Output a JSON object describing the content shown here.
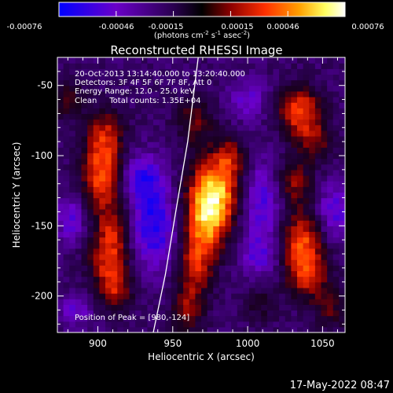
{
  "chart_data": {
    "type": "heatmap",
    "title": "Reconstructed RHESSI Image",
    "xlabel": "Heliocentric X (arcsec)",
    "ylabel": "Heliocentric Y (arcsec)",
    "xlim": [
      873,
      1065
    ],
    "ylim": [
      -226,
      -30
    ],
    "x_ticks": [
      900,
      950,
      1000,
      1050
    ],
    "y_ticks": [
      -50,
      -100,
      -150,
      -200
    ],
    "colorbar": {
      "ticks": [
        "-0.00076",
        "-0.00046",
        "-0.00015",
        "0.00015",
        "0.00046",
        "0.00076"
      ],
      "label_pre": "(photons cm",
      "label_exp1": "-2",
      "label_mid": " s",
      "label_exp2": "-1",
      "label_mid2": " asec",
      "label_exp3": "-2",
      "label_post": ")",
      "range": [
        -0.00076,
        0.00076
      ],
      "colormap": [
        "#0000ff",
        "#6a00c8",
        "#3a0060",
        "#000000",
        "#8c0000",
        "#ff3000",
        "#ffa000",
        "#ffff60",
        "#ffffff"
      ]
    },
    "annotations": [
      "20-Oct-2013 13:14:40.000 to 13:20:40.000",
      "Detectors: 3F 4F 5F 6F 7F 8F, Att 0",
      "Energy Range: 12.0 - 25.0 keV",
      "Clean     Total counts: 1.35E+04"
    ],
    "peak_label": "Position of Peak = [980,-124]",
    "peak": [
      980,
      -124
    ],
    "limb_curve": [
      [
        967,
        -30
      ],
      [
        960,
        -90
      ],
      [
        952,
        -140
      ],
      [
        945,
        -185
      ],
      [
        937,
        -226
      ]
    ],
    "sources": [
      {
        "x": 905,
        "y": -85,
        "sx": 9,
        "sy": 14,
        "amp": 0.55
      },
      {
        "x": 902,
        "y": -115,
        "sx": 9,
        "sy": 16,
        "amp": 0.7
      },
      {
        "x": 910,
        "y": -150,
        "sx": 8,
        "sy": 14,
        "amp": 0.45
      },
      {
        "x": 907,
        "y": -175,
        "sx": 10,
        "sy": 14,
        "amp": 0.6
      },
      {
        "x": 912,
        "y": -198,
        "sx": 8,
        "sy": 10,
        "amp": 0.45
      },
      {
        "x": 880,
        "y": -60,
        "sx": 8,
        "sy": 10,
        "amp": 0.35
      },
      {
        "x": 978,
        "y": -125,
        "sx": 12,
        "sy": 16,
        "amp": 1.0
      },
      {
        "x": 972,
        "y": -150,
        "sx": 10,
        "sy": 16,
        "amp": 0.8
      },
      {
        "x": 965,
        "y": -180,
        "sx": 8,
        "sy": 14,
        "amp": 0.55
      },
      {
        "x": 960,
        "y": -210,
        "sx": 8,
        "sy": 12,
        "amp": 0.45
      },
      {
        "x": 965,
        "y": -75,
        "sx": 9,
        "sy": 12,
        "amp": 0.4
      },
      {
        "x": 988,
        "y": -100,
        "sx": 8,
        "sy": 10,
        "amp": 0.45
      },
      {
        "x": 1035,
        "y": -68,
        "sx": 10,
        "sy": 12,
        "amp": 0.75
      },
      {
        "x": 1045,
        "y": -90,
        "sx": 9,
        "sy": 10,
        "amp": 0.4
      },
      {
        "x": 1030,
        "y": -120,
        "sx": 9,
        "sy": 12,
        "amp": 0.5
      },
      {
        "x": 1036,
        "y": -160,
        "sx": 10,
        "sy": 14,
        "amp": 0.7
      },
      {
        "x": 1040,
        "y": -185,
        "sx": 10,
        "sy": 12,
        "amp": 0.6
      },
      {
        "x": 1055,
        "y": -210,
        "sx": 8,
        "sy": 10,
        "amp": 0.35
      },
      {
        "x": 1008,
        "y": -205,
        "sx": 8,
        "sy": 10,
        "amp": 0.25
      }
    ],
    "negatives": [
      {
        "x": 937,
        "y": -150,
        "sx": 11,
        "sy": 22,
        "amp": -0.6
      },
      {
        "x": 930,
        "y": -115,
        "sx": 9,
        "sy": 12,
        "amp": -0.45
      },
      {
        "x": 1010,
        "y": -130,
        "sx": 10,
        "sy": 18,
        "amp": -0.5
      },
      {
        "x": 1008,
        "y": -170,
        "sx": 9,
        "sy": 12,
        "amp": -0.4
      },
      {
        "x": 1058,
        "y": -140,
        "sx": 8,
        "sy": 14,
        "amp": -0.45
      },
      {
        "x": 882,
        "y": -145,
        "sx": 7,
        "sy": 12,
        "amp": -0.4
      },
      {
        "x": 1000,
        "y": -60,
        "sx": 9,
        "sy": 10,
        "amp": -0.35
      },
      {
        "x": 885,
        "y": -210,
        "sx": 8,
        "sy": 8,
        "amp": -0.35
      }
    ]
  },
  "footer": {
    "timestamp": "17-May-2022 08:47"
  }
}
